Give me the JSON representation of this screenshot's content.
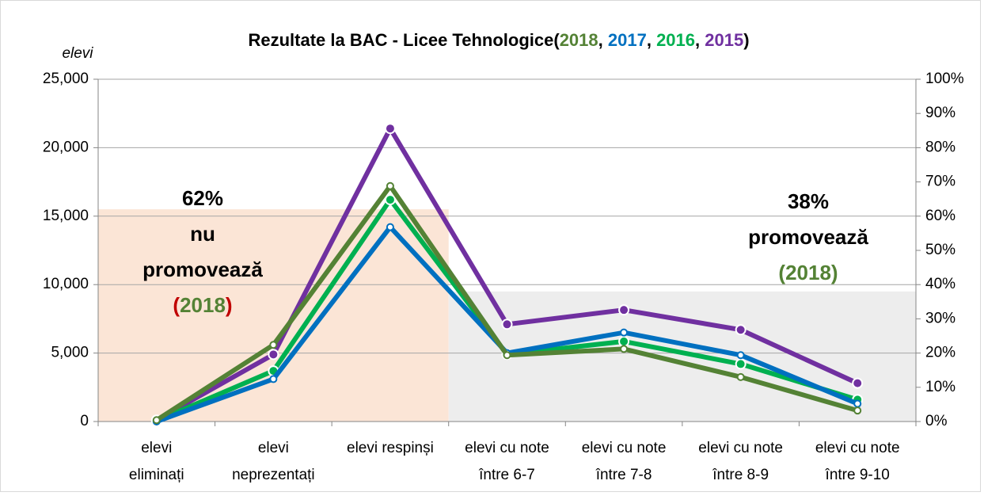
{
  "chart_data": {
    "type": "line",
    "title": "Rezultate la BAC - Licee Tehnologice",
    "title_punctuation": [
      "(",
      ", ",
      ", ",
      ", ",
      ")"
    ],
    "ylabel": "elevi",
    "categories": [
      [
        "elevi",
        "eliminați"
      ],
      [
        "elevi",
        "neprezentați"
      ],
      [
        "elevi respinși"
      ],
      [
        "elevi cu note",
        "între 6-7"
      ],
      [
        "elevi cu note",
        "între 7-8"
      ],
      [
        "elevi cu note",
        "între 8-9"
      ],
      [
        "elevi cu note",
        "între 9-10"
      ]
    ],
    "series": [
      {
        "name": "2018",
        "color": "#548235",
        "marker": "hollow",
        "values": [
          100,
          5600,
          17200,
          4850,
          5300,
          3250,
          800
        ]
      },
      {
        "name": "2017",
        "color": "#0070c0",
        "marker": "hollow",
        "values": [
          0,
          3100,
          14200,
          5000,
          6500,
          4850,
          1300
        ]
      },
      {
        "name": "2016",
        "color": "#00b050",
        "marker": "filled",
        "values": [
          50,
          3700,
          16200,
          4900,
          5850,
          4200,
          1600
        ]
      },
      {
        "name": "2015",
        "color": "#7030a0",
        "marker": "filled",
        "values": [
          100,
          4900,
          21400,
          7100,
          8150,
          6700,
          2800
        ]
      }
    ],
    "regions": [
      {
        "value": 62,
        "label": "62%",
        "color": "#fbe5d6",
        "text_color": "#c00000",
        "lines": [
          "nu",
          "promovează"
        ],
        "open": "(",
        "year": "2018",
        "close": ")"
      },
      {
        "value": 38,
        "label": "38%",
        "color": "#ededed",
        "text_color": "#00b050",
        "lines": [
          "promovează"
        ],
        "open": "(",
        "year": "2018",
        "close": ")"
      }
    ],
    "ylim": [
      0,
      25000
    ],
    "yticks": [
      0,
      {
        "value": 5000,
        "label": "5,000"
      },
      {
        "value": 10000,
        "label": "10,000"
      },
      {
        "value": 15000,
        "label": "15,000"
      },
      {
        "value": 20000,
        "label": "20,000"
      },
      {
        "value": 25000,
        "label": "25,000"
      }
    ],
    "y2lim": [
      0,
      100
    ],
    "y2ticks": [
      {
        "value": 0,
        "label": "0%"
      },
      {
        "value": 10,
        "label": "10%"
      },
      {
        "value": 20,
        "label": "20%"
      },
      {
        "value": 30,
        "label": "30%"
      },
      {
        "value": 40,
        "label": "40%"
      },
      {
        "value": 50,
        "label": "50%"
      },
      {
        "value": 60,
        "label": "60%"
      },
      {
        "value": 70,
        "label": "70%"
      },
      {
        "value": 80,
        "label": "80%"
      },
      {
        "value": 90,
        "label": "90%"
      },
      {
        "value": 100,
        "label": "100%"
      }
    ],
    "grid": true
  }
}
